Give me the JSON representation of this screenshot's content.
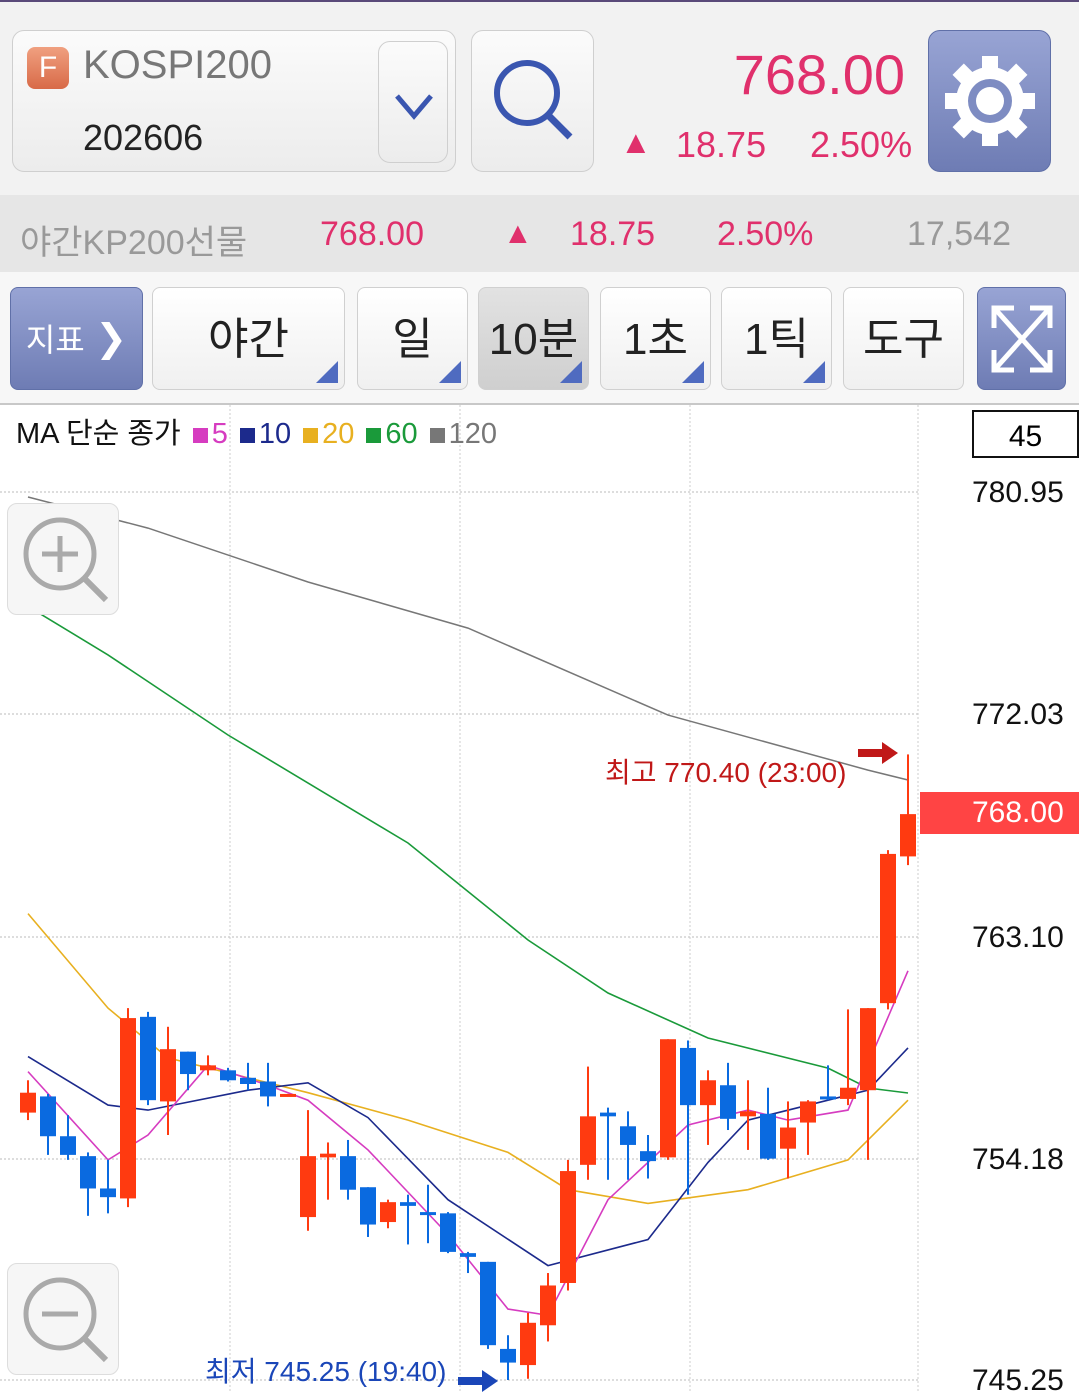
{
  "header": {
    "badge": "F",
    "instrument": "KOSPI200",
    "contract": "202606",
    "price": "768.00",
    "change_arrow": "▲",
    "change": "18.75",
    "change_pct": "2.50%",
    "price_color": "#e0306c"
  },
  "night": {
    "name": "야간KP200선물",
    "price": "768.00",
    "arrow": "▲",
    "change": "18.75",
    "change_pct": "2.50%",
    "volume": "17,542"
  },
  "toolbar": {
    "indicator": "지표",
    "night": "야간",
    "day": "일",
    "min10": "10분",
    "sec1": "1초",
    "tick1": "1틱",
    "tools": "도구",
    "selected": "10분"
  },
  "legend": {
    "label": "MA 단순 종가",
    "items": [
      {
        "period": "5",
        "color": "#d63cc0"
      },
      {
        "period": "10",
        "color": "#1c2a8c"
      },
      {
        "period": "20",
        "color": "#e8b020"
      },
      {
        "period": "60",
        "color": "#1a9a3a"
      },
      {
        "period": "120",
        "color": "#777777"
      }
    ]
  },
  "chart_data": {
    "type": "candlestick",
    "candle_count": "45",
    "y_ticks": [
      "780.95",
      "772.03",
      "763.10",
      "754.18",
      "745.25"
    ],
    "ylim": [
      745.25,
      780.95
    ],
    "grid": true,
    "current_price": "768.00",
    "high_label": "최고 770.40 (23:00)",
    "low_label": "최저 745.25 (19:40)",
    "up_color": "#ff3a10",
    "down_color": "#0a6ae0",
    "candles": [
      [
        756.0,
        757.3,
        755.7,
        756.8
      ],
      [
        756.65,
        756.75,
        754.3,
        755.05
      ],
      [
        755.05,
        755.9,
        754.1,
        754.3
      ],
      [
        754.25,
        754.4,
        751.85,
        752.95
      ],
      [
        752.95,
        754.1,
        751.95,
        752.6
      ],
      [
        752.55,
        760.2,
        752.2,
        759.8
      ],
      [
        759.85,
        760.05,
        756.3,
        756.5
      ],
      [
        756.45,
        759.45,
        755.1,
        758.55
      ],
      [
        758.45,
        758.45,
        756.9,
        757.55
      ],
      [
        757.7,
        758.3,
        757.5,
        757.9
      ],
      [
        757.7,
        757.8,
        757.25,
        757.3
      ],
      [
        757.4,
        758.0,
        756.9,
        757.15
      ],
      [
        757.25,
        758.0,
        756.25,
        756.65
      ],
      [
        756.7,
        756.75,
        756.65,
        756.75
      ],
      [
        751.8,
        756.1,
        751.25,
        754.25
      ],
      [
        754.2,
        754.8,
        752.5,
        754.35
      ],
      [
        754.25,
        754.9,
        752.5,
        752.9
      ],
      [
        753.0,
        753.0,
        751.0,
        751.5
      ],
      [
        751.6,
        752.5,
        751.35,
        752.4
      ],
      [
        752.4,
        752.7,
        750.7,
        752.25
      ],
      [
        752.0,
        753.1,
        750.75,
        751.9
      ],
      [
        751.95,
        752.0,
        750.35,
        750.4
      ],
      [
        750.35,
        750.4,
        749.55,
        750.2
      ],
      [
        750.0,
        750.0,
        746.5,
        746.65
      ],
      [
        746.5,
        747.05,
        745.25,
        745.95
      ],
      [
        745.85,
        747.95,
        745.3,
        747.55
      ],
      [
        747.45,
        749.55,
        746.8,
        749.05
      ],
      [
        749.15,
        754.1,
        748.85,
        753.65
      ],
      [
        753.9,
        757.85,
        753.3,
        755.85
      ],
      [
        756.0,
        756.2,
        753.3,
        755.85
      ],
      [
        755.45,
        756.05,
        753.3,
        754.7
      ],
      [
        754.45,
        755.1,
        753.35,
        754.05
      ],
      [
        754.2,
        758.95,
        754.1,
        758.95
      ],
      [
        758.6,
        758.9,
        752.7,
        756.3
      ],
      [
        756.3,
        757.7,
        754.7,
        757.3
      ],
      [
        757.1,
        758.0,
        755.3,
        755.75
      ],
      [
        755.85,
        757.3,
        754.5,
        756.05
      ],
      [
        755.95,
        757.0,
        754.1,
        754.15
      ],
      [
        754.55,
        756.45,
        753.35,
        755.4
      ],
      [
        755.6,
        756.5,
        754.3,
        756.45
      ],
      [
        756.65,
        757.9,
        756.5,
        756.55
      ],
      [
        756.55,
        760.15,
        756.3,
        757.0
      ],
      [
        756.9,
        760.2,
        754.1,
        760.2
      ],
      [
        760.4,
        766.55,
        760.15,
        766.4
      ],
      [
        766.3,
        770.4,
        765.95,
        768.0
      ]
    ],
    "ma": [
      {
        "period": "120",
        "points": [
          [
            0,
            780.75
          ],
          [
            6,
            779.5
          ],
          [
            14,
            777.33
          ],
          [
            22,
            775.48
          ],
          [
            32,
            771.98
          ],
          [
            42,
            769.77
          ],
          [
            44,
            769.37
          ]
        ]
      },
      {
        "period": "60",
        "points": [
          [
            0,
            776.35
          ],
          [
            4,
            774.4
          ],
          [
            10,
            771.18
          ],
          [
            19,
            766.84
          ],
          [
            25,
            762.94
          ],
          [
            29,
            760.81
          ],
          [
            34,
            759.0
          ],
          [
            40,
            757.79
          ],
          [
            42,
            756.99
          ],
          [
            44,
            756.79
          ]
        ]
      },
      {
        "period": "20",
        "points": [
          [
            0,
            764.0
          ],
          [
            4,
            760.2
          ],
          [
            7,
            758.2
          ],
          [
            14,
            756.8
          ],
          [
            19,
            755.7
          ],
          [
            24,
            754.4
          ],
          [
            27,
            752.9
          ],
          [
            31,
            752.35
          ],
          [
            36,
            752.9
          ],
          [
            41,
            754.1
          ],
          [
            44,
            756.5
          ]
        ]
      },
      {
        "period": "10",
        "points": [
          [
            0,
            758.25
          ],
          [
            4,
            756.3
          ],
          [
            6,
            756.1
          ],
          [
            11,
            756.9
          ],
          [
            14,
            757.2
          ],
          [
            17,
            755.8
          ],
          [
            21,
            752.5
          ],
          [
            26,
            749.85
          ],
          [
            31,
            750.9
          ],
          [
            34,
            754.0
          ],
          [
            36,
            755.7
          ],
          [
            40,
            756.5
          ],
          [
            42,
            756.9
          ],
          [
            44,
            758.6
          ]
        ]
      },
      {
        "period": "5",
        "points": [
          [
            0,
            757.65
          ],
          [
            4,
            754.1
          ],
          [
            6,
            755.1
          ],
          [
            9,
            757.9
          ],
          [
            12,
            757.1
          ],
          [
            14,
            756.5
          ],
          [
            17,
            754.5
          ],
          [
            21,
            751.1
          ],
          [
            24,
            748.1
          ],
          [
            26,
            747.85
          ],
          [
            29,
            752.5
          ],
          [
            33,
            755.5
          ],
          [
            36,
            756.1
          ],
          [
            38,
            755.7
          ],
          [
            41,
            756.1
          ],
          [
            44,
            761.7
          ]
        ]
      }
    ]
  }
}
